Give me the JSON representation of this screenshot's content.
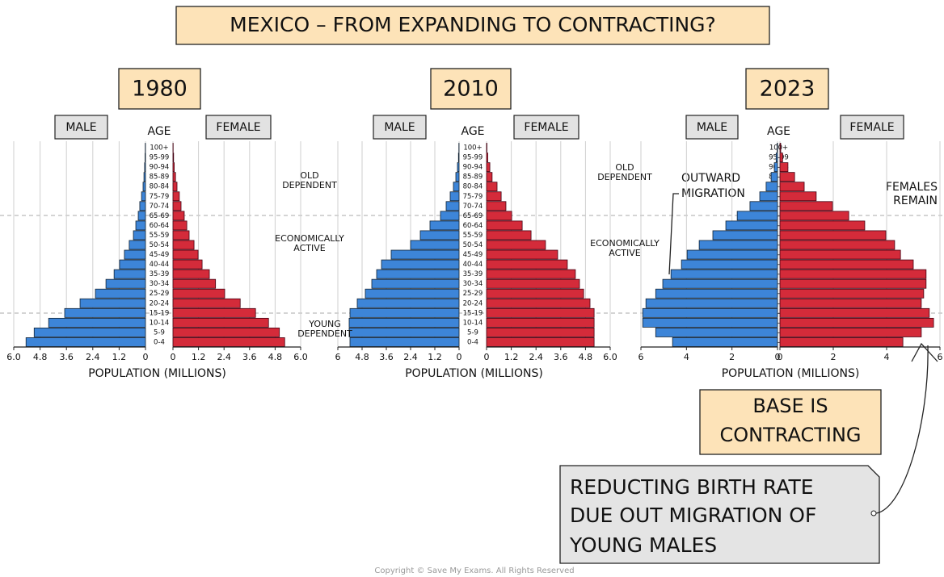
{
  "title": "MEXICO – FROM EXPANDING TO CONTRACTING?",
  "chart_data": [
    {
      "type": "pyramid",
      "title": "1980",
      "ylabel": "AGE",
      "xlabel": "POPULATION (MILLIONS)",
      "categories": [
        "0-4",
        "5-9",
        "10-14",
        "15-19",
        "20-24",
        "25-29",
        "30-34",
        "35-39",
        "40-44",
        "45-49",
        "50-54",
        "55-59",
        "60-64",
        "65-69",
        "70-74",
        "75-79",
        "80-84",
        "85-89",
        "90-94",
        "95-99",
        "100+"
      ],
      "series": [
        {
          "name": "MALE",
          "color": "#3d85d8",
          "values": [
            5.44,
            5.07,
            4.41,
            3.68,
            2.98,
            2.28,
            1.8,
            1.43,
            1.18,
            0.96,
            0.74,
            0.55,
            0.44,
            0.33,
            0.26,
            0.18,
            0.11,
            0.07,
            0.04,
            0.02,
            0.01
          ]
        },
        {
          "name": "FEMALE",
          "color": "#d42b3a",
          "values": [
            5.25,
            5.0,
            4.49,
            3.88,
            3.16,
            2.43,
            2.0,
            1.71,
            1.37,
            1.18,
            0.99,
            0.76,
            0.65,
            0.53,
            0.38,
            0.3,
            0.19,
            0.12,
            0.06,
            0.03,
            0.01
          ]
        }
      ],
      "xlim": [
        0,
        6
      ],
      "male_xticks": [
        {
          "value": 6,
          "label": "6.0"
        },
        4.8,
        3.6,
        2.4,
        1.2,
        0
      ],
      "female_xticks": [
        0,
        1.2,
        2.4,
        3.6,
        4.8,
        {
          "value": 6,
          "label": "6.0"
        }
      ],
      "grid": true
    },
    {
      "type": "pyramid",
      "title": "2010",
      "ylabel": "AGE",
      "xlabel": "POPULATION (MILLIONS)",
      "categories": [
        "0-4",
        "5-9",
        "10-14",
        "15-19",
        "20-24",
        "25-29",
        "30-34",
        "35-39",
        "40-44",
        "45-49",
        "50-54",
        "55-59",
        "60-64",
        "65-69",
        "70-74",
        "75-79",
        "80-84",
        "85-89",
        "90-94",
        "95-99",
        "100+"
      ],
      "series": [
        {
          "name": "MALE",
          "color": "#3d85d8",
          "values": [
            5.4,
            5.44,
            5.44,
            5.4,
            5.04,
            4.64,
            4.32,
            4.08,
            3.84,
            3.36,
            2.4,
            1.92,
            1.44,
            0.92,
            0.64,
            0.44,
            0.28,
            0.16,
            0.08,
            0.03,
            0.01
          ]
        },
        {
          "name": "FEMALE",
          "color": "#d42b3a",
          "values": [
            5.22,
            5.22,
            5.22,
            5.22,
            5.02,
            4.71,
            4.51,
            4.31,
            3.92,
            3.45,
            2.86,
            2.16,
            1.73,
            1.22,
            0.94,
            0.71,
            0.51,
            0.27,
            0.16,
            0.06,
            0.02
          ]
        }
      ],
      "xlim": [
        0,
        6
      ],
      "male_xticks": [
        6,
        4.8,
        3.6,
        2.4,
        1.2,
        0
      ],
      "female_xticks": [
        0,
        1.2,
        2.4,
        3.6,
        4.8,
        {
          "value": 6,
          "label": "6.0"
        }
      ],
      "grid": true
    },
    {
      "type": "pyramid",
      "title": "2023",
      "ylabel": "AGE",
      "xlabel": "POPULATION (MILLIONS)",
      "categories": [
        "0-4",
        "5-9",
        "10-14",
        "15-19",
        "20-24",
        "25-29",
        "30-34",
        "35-39",
        "40-44",
        "45-49",
        "50-54",
        "55-59",
        "60-64",
        "65-69",
        "70-74",
        "75-79",
        "80-84",
        "85-89",
        "90-94",
        "95-99",
        "100+"
      ],
      "series": [
        {
          "name": "MALE",
          "color": "#3d85d8",
          "values": [
            4.61,
            5.35,
            5.92,
            5.92,
            5.78,
            5.35,
            5.04,
            4.68,
            4.22,
            3.97,
            3.44,
            2.84,
            2.27,
            1.77,
            1.21,
            0.78,
            0.5,
            0.28,
            0.14,
            0.06,
            0.02
          ]
        },
        {
          "name": "FEMALE",
          "color": "#d42b3a",
          "values": [
            4.61,
            5.3,
            5.76,
            5.6,
            5.3,
            5.39,
            5.48,
            5.48,
            5.0,
            4.52,
            4.3,
            3.97,
            3.18,
            2.58,
            1.97,
            1.36,
            0.91,
            0.55,
            0.3,
            0.1,
            0.03
          ]
        }
      ],
      "xlim": [
        0,
        6
      ],
      "male_xticks": [
        6,
        4,
        2,
        0
      ],
      "female_xticks": [
        0,
        2,
        4,
        6
      ],
      "grid": true
    }
  ],
  "side_labels": [
    {
      "lines": [
        "OLD",
        "DEPENDENT"
      ]
    },
    {
      "lines": [
        "ECONOMICALLY",
        "ACTIVE"
      ]
    },
    {
      "lines": [
        "YOUNG",
        "DEPENDENT"
      ]
    },
    {
      "lines": [
        "OLD",
        "DEPENDENT"
      ]
    },
    {
      "lines": [
        "ECONOMICALLY",
        "ACTIVE"
      ]
    }
  ],
  "annotations": {
    "outward_migration": [
      "OUTWARD",
      "MIGRATION"
    ],
    "females_remain": [
      "FEMALES",
      "REMAIN"
    ],
    "base": [
      "BASE IS",
      "CONTRACTING"
    ],
    "callout": [
      "REDUCTING BIRTH RATE",
      "DUE OUT MIGRATION OF",
      "YOUNG MALES"
    ]
  },
  "copyright": "Copyright © Save My Exams. All Rights Reserved"
}
